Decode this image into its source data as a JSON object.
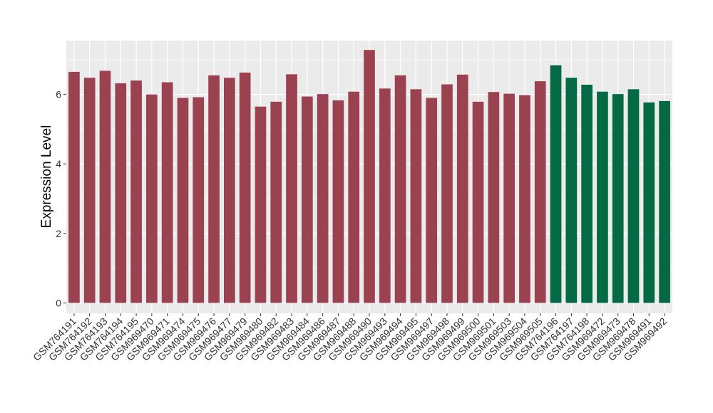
{
  "chart_data": {
    "type": "bar",
    "title": "",
    "xlabel": "",
    "ylabel": "Expression Level",
    "ylim": [
      -0.3,
      7.55
    ],
    "yticks": [
      0,
      2,
      4,
      6
    ],
    "grid": true,
    "legend": "none",
    "colors": {
      "group1": "#9B4250",
      "group2": "#036A45",
      "panel": "#EBEBEB",
      "gridline": "#FFFFFF"
    },
    "categories": [
      "GSM764191",
      "GSM764192",
      "GSM764193",
      "GSM764194",
      "GSM764195",
      "GSM969470",
      "GSM969471",
      "GSM969474",
      "GSM969475",
      "GSM969476",
      "GSM969477",
      "GSM969479",
      "GSM969480",
      "GSM969482",
      "GSM969483",
      "GSM969484",
      "GSM969486",
      "GSM969487",
      "GSM969488",
      "GSM969490",
      "GSM969493",
      "GSM969494",
      "GSM969495",
      "GSM969497",
      "GSM969498",
      "GSM969499",
      "GSM969500",
      "GSM969501",
      "GSM969503",
      "GSM969504",
      "GSM969505",
      "GSM764196",
      "GSM764197",
      "GSM764198",
      "GSM969472",
      "GSM969473",
      "GSM969478",
      "GSM969491",
      "GSM969492"
    ],
    "values": [
      6.65,
      6.48,
      6.68,
      6.32,
      6.4,
      6.0,
      6.35,
      5.9,
      5.92,
      6.55,
      6.48,
      6.63,
      5.65,
      5.79,
      6.58,
      5.94,
      6.01,
      5.83,
      6.08,
      7.28,
      6.17,
      6.55,
      6.15,
      5.9,
      6.29,
      6.57,
      5.79,
      6.07,
      6.02,
      5.98,
      6.38,
      6.84,
      6.48,
      6.28,
      6.08,
      6.01,
      6.15,
      5.77,
      5.81
    ],
    "groups": [
      "group1",
      "group1",
      "group1",
      "group1",
      "group1",
      "group1",
      "group1",
      "group1",
      "group1",
      "group1",
      "group1",
      "group1",
      "group1",
      "group1",
      "group1",
      "group1",
      "group1",
      "group1",
      "group1",
      "group1",
      "group1",
      "group1",
      "group1",
      "group1",
      "group1",
      "group1",
      "group1",
      "group1",
      "group1",
      "group1",
      "group1",
      "group2",
      "group2",
      "group2",
      "group2",
      "group2",
      "group2",
      "group2",
      "group2"
    ]
  }
}
